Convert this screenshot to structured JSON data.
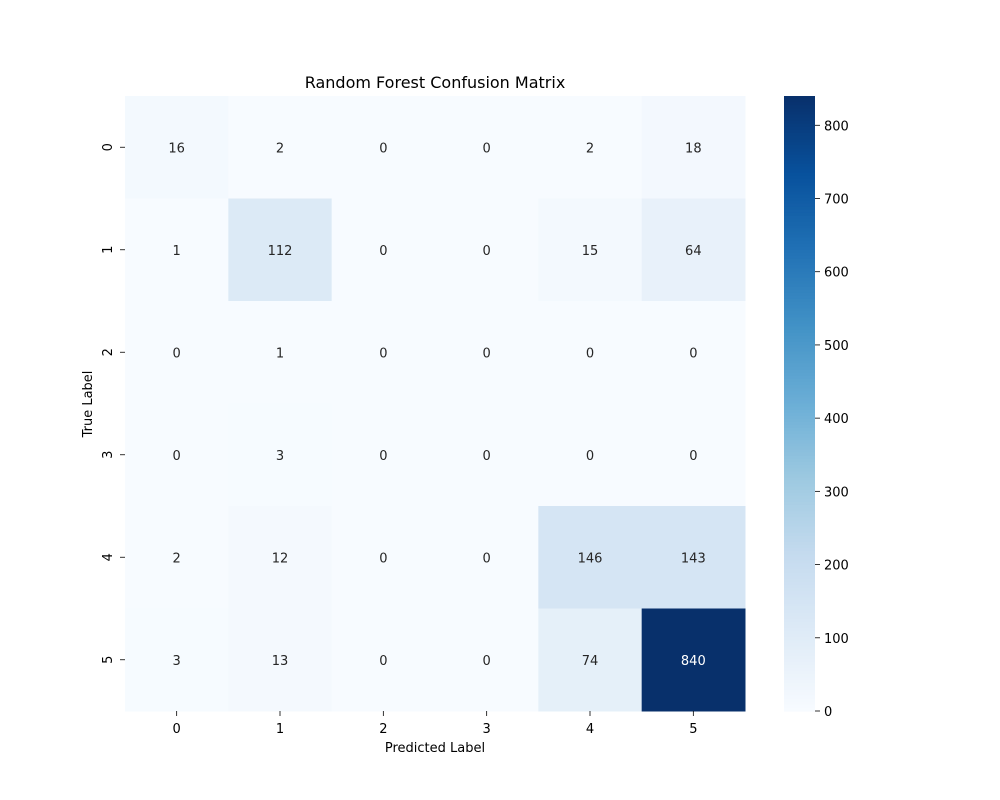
{
  "chart_data": {
    "type": "heatmap",
    "title": "Random Forest Confusion Matrix",
    "xlabel": "Predicted Label",
    "ylabel": "True Label",
    "x_categories": [
      "0",
      "1",
      "2",
      "3",
      "4",
      "5"
    ],
    "y_categories": [
      "0",
      "1",
      "2",
      "3",
      "4",
      "5"
    ],
    "matrix": [
      [
        16,
        2,
        0,
        0,
        2,
        18
      ],
      [
        1,
        112,
        0,
        0,
        15,
        64
      ],
      [
        0,
        1,
        0,
        0,
        0,
        0
      ],
      [
        0,
        3,
        0,
        0,
        0,
        0
      ],
      [
        2,
        12,
        0,
        0,
        146,
        143
      ],
      [
        3,
        13,
        0,
        0,
        74,
        840
      ]
    ],
    "colorbar": {
      "min": 0,
      "max": 840,
      "ticks": [
        0,
        100,
        200,
        300,
        400,
        500,
        600,
        700,
        800
      ]
    },
    "colormap": "Blues",
    "colors": {
      "scale_low": "#f7fbff",
      "scale_high": "#08306b",
      "annotation_dark_text": "#262626",
      "annotation_light_text": "#ffffff"
    },
    "grid": false,
    "annotations": true
  }
}
